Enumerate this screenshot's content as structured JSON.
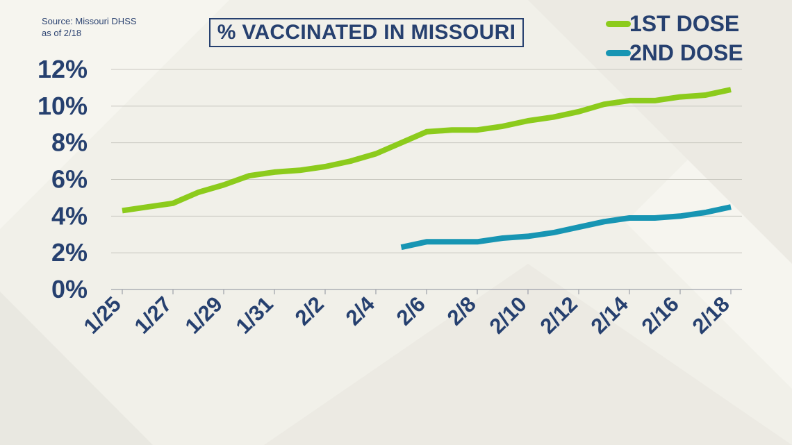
{
  "colors": {
    "first_dose": "#8ccb1c",
    "second_dose": "#1795b3",
    "text": "#26406f",
    "grid": "#c9c8c0"
  },
  "source": {
    "line1": "Source: Missouri DHSS",
    "line2": "as of 2/18"
  },
  "chart_data": {
    "type": "line",
    "title": "% VACCINATED IN MISSOURI",
    "xlabel": "",
    "ylabel": "",
    "ylim": [
      0,
      12
    ],
    "yticks": [
      "0%",
      "2%",
      "4%",
      "6%",
      "8%",
      "10%",
      "12%"
    ],
    "x": [
      "1/25",
      "1/26",
      "1/27",
      "1/28",
      "1/29",
      "1/30",
      "1/31",
      "2/1",
      "2/2",
      "2/3",
      "2/4",
      "2/5",
      "2/6",
      "2/7",
      "2/8",
      "2/9",
      "2/10",
      "2/11",
      "2/12",
      "2/13",
      "2/14",
      "2/15",
      "2/16",
      "2/17",
      "2/18"
    ],
    "xtick_labels": [
      "1/25",
      "1/27",
      "1/29",
      "1/31",
      "2/2",
      "2/4",
      "2/6",
      "2/8",
      "2/10",
      "2/12",
      "2/14",
      "2/16",
      "2/18"
    ],
    "grid": true,
    "legend_position": "top-right",
    "series": [
      {
        "name": "1ST DOSE",
        "color": "#8ccb1c",
        "values": [
          4.3,
          4.5,
          4.7,
          5.3,
          5.7,
          6.2,
          6.4,
          6.5,
          6.7,
          7.0,
          7.4,
          8.0,
          8.6,
          8.7,
          8.7,
          8.9,
          9.2,
          9.4,
          9.7,
          10.1,
          10.3,
          10.3,
          10.5,
          10.6,
          10.9
        ]
      },
      {
        "name": "2ND DOSE",
        "color": "#1795b3",
        "values": [
          null,
          null,
          null,
          null,
          null,
          null,
          null,
          null,
          null,
          null,
          null,
          2.3,
          2.6,
          2.6,
          2.6,
          2.8,
          2.9,
          3.1,
          3.4,
          3.7,
          3.9,
          3.9,
          4.0,
          4.2,
          4.5
        ]
      }
    ]
  }
}
